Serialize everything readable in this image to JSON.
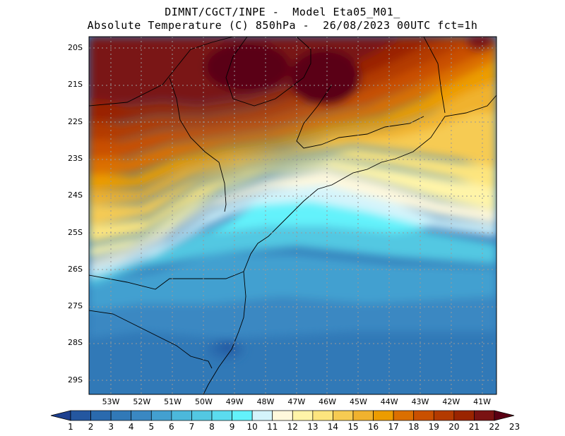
{
  "header": {
    "line1": "DIMNT/CGCT/INPE -  Model Eta05_M01_",
    "line2": "Absolute Temperature (C) 850hPa -  26/08/2023 00UTC fct=1h"
  },
  "map": {
    "lat_labels": [
      "20S",
      "21S",
      "22S",
      "23S",
      "24S",
      "25S",
      "26S",
      "27S",
      "28S",
      "29S"
    ],
    "lon_labels": [
      "53W",
      "52W",
      "51W",
      "50W",
      "49W",
      "48W",
      "47W",
      "46W",
      "45W",
      "44W",
      "43W",
      "42W",
      "41W"
    ],
    "lat_range": [
      -29.4,
      -19.8
    ],
    "lon_range": [
      -53.8,
      -40.5
    ]
  },
  "colorbar": {
    "labels": [
      "1",
      "2",
      "3",
      "4",
      "5",
      "6",
      "7",
      "8",
      "9",
      "10",
      "11",
      "12",
      "13",
      "14",
      "15",
      "16",
      "17",
      "18",
      "19",
      "20",
      "21",
      "22",
      "23"
    ],
    "colors": [
      "#1c3f8f",
      "#2457a0",
      "#2a6aae",
      "#3179b7",
      "#3a88c2",
      "#43a0d0",
      "#4cb8db",
      "#53c8e2",
      "#5bdcef",
      "#63f2fb",
      "#d4f4fb",
      "#fff8dc",
      "#fff4a8",
      "#fde57e",
      "#f6cb52",
      "#f0b22e",
      "#ec9c00",
      "#db6f00",
      "#c95000",
      "#b33a00",
      "#9a2400",
      "#7a1212",
      "#5a0014"
    ]
  }
}
